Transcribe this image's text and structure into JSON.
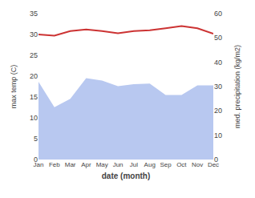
{
  "chart_data": {
    "type": "line",
    "categories": [
      "Jan",
      "Feb",
      "Mar",
      "Apr",
      "May",
      "Jun",
      "Jul",
      "Aug",
      "Sep",
      "Oct",
      "Nov",
      "Dec"
    ],
    "xlabel": "date (month)",
    "ylabel": "max temp (C)",
    "y2label": "med. precipitation (kg/m2)",
    "ylim": [
      0,
      35
    ],
    "yticks": [
      0,
      5,
      10,
      15,
      20,
      25,
      30,
      35
    ],
    "y2lim": [
      0,
      60
    ],
    "y2ticks": [
      0,
      10,
      20,
      30,
      40,
      50,
      60
    ],
    "grid": false,
    "series": [
      {
        "type": "area",
        "axis": "y2",
        "color": "#b8c8f0",
        "values": [
          32.0,
          21.5,
          25.0,
          33.5,
          32.5,
          30.2,
          31.0,
          31.2,
          26.5,
          26.5,
          30.5,
          30.5
        ]
      },
      {
        "type": "line",
        "color": "#cc3333",
        "values": [
          30.0,
          29.7,
          30.8,
          31.2,
          30.8,
          30.3,
          30.8,
          31.0,
          31.5,
          32.0,
          31.5,
          30.2
        ]
      }
    ]
  }
}
